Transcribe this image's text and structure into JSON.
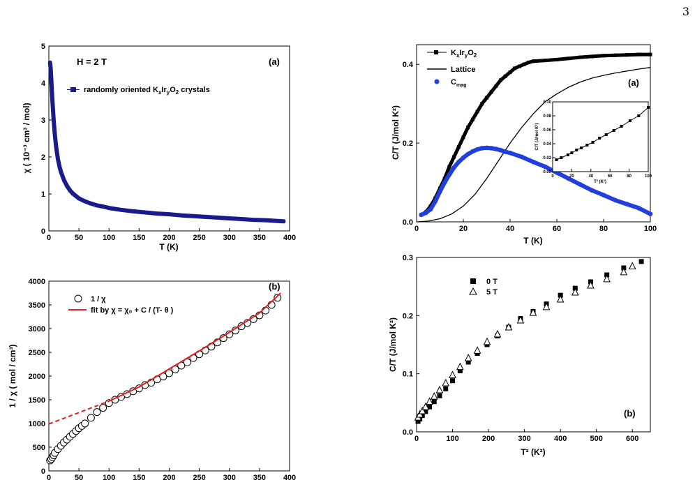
{
  "page_number": "3",
  "chart_data": [
    {
      "id": "chi_vs_T",
      "type": "scatter",
      "panel_label": "(a)",
      "annotation": "H = 2 T",
      "xlabel": "T (K)",
      "ylabel": "χ ( 10⁻³ cm³ / mol)",
      "xlim": [
        0,
        400
      ],
      "ylim": [
        0,
        5
      ],
      "xticks": [
        "0",
        "50",
        "100",
        "150",
        "200",
        "250",
        "300",
        "350",
        "400"
      ],
      "yticks": [
        "0",
        "1",
        "2",
        "3",
        "4",
        "5"
      ],
      "series": [
        {
          "name": "randomly oriented KxIryO2 crystals",
          "color": "#1a1a8c",
          "x": [
            2,
            3,
            4,
            5,
            6,
            8,
            10,
            12,
            15,
            18,
            20,
            25,
            30,
            35,
            40,
            50,
            60,
            70,
            80,
            90,
            100,
            120,
            140,
            160,
            180,
            200,
            220,
            240,
            260,
            280,
            300,
            320,
            340,
            360,
            380,
            390
          ],
          "y": [
            4.55,
            4.4,
            4.1,
            3.8,
            3.5,
            3.0,
            2.6,
            2.3,
            1.95,
            1.72,
            1.6,
            1.38,
            1.22,
            1.1,
            1.01,
            0.88,
            0.8,
            0.74,
            0.69,
            0.66,
            0.62,
            0.57,
            0.53,
            0.5,
            0.47,
            0.45,
            0.42,
            0.4,
            0.38,
            0.36,
            0.34,
            0.32,
            0.3,
            0.29,
            0.27,
            0.26
          ]
        }
      ]
    },
    {
      "id": "inv_chi_vs_T",
      "type": "scatter",
      "panel_label": "(b)",
      "xlabel": "",
      "ylabel": "1 / χ ( mol / cm³)",
      "xlim": [
        0,
        400
      ],
      "ylim": [
        0,
        4000
      ],
      "xticks": [
        "0",
        "50",
        "100",
        "150",
        "200",
        "250",
        "300",
        "350",
        "400"
      ],
      "yticks": [
        "0",
        "500",
        "1000",
        "1500",
        "2000",
        "2500",
        "3000",
        "3500",
        "4000"
      ],
      "legend": {
        "data_label": "1 / χ",
        "fit_label": "fit by χ = χ₀  +  C / (T- θ )"
      },
      "series": [
        {
          "name": "1 / χ",
          "x": [
            2,
            4,
            6,
            8,
            10,
            15,
            20,
            25,
            30,
            35,
            40,
            45,
            50,
            55,
            60,
            70,
            80,
            90,
            100,
            110,
            120,
            130,
            140,
            150,
            160,
            170,
            180,
            190,
            200,
            210,
            220,
            230,
            240,
            250,
            260,
            270,
            280,
            290,
            300,
            310,
            320,
            330,
            340,
            350,
            360,
            370,
            380
          ],
          "y": [
            220,
            250,
            290,
            330,
            380,
            460,
            530,
            600,
            660,
            720,
            780,
            840,
            900,
            950,
            1000,
            1120,
            1240,
            1330,
            1430,
            1500,
            1560,
            1620,
            1680,
            1740,
            1810,
            1860,
            1930,
            1990,
            2060,
            2140,
            2220,
            2290,
            2380,
            2460,
            2540,
            2620,
            2710,
            2800,
            2880,
            2960,
            3050,
            3120,
            3200,
            3280,
            3380,
            3500,
            3650
          ]
        }
      ],
      "fit": {
        "x": [
          0,
          100,
          150,
          200,
          250,
          300,
          350,
          385
        ],
        "y": [
          990,
          1470,
          1770,
          2150,
          2530,
          2920,
          3330,
          3750
        ],
        "color": "#e02020",
        "dashed_below_x": 100
      }
    },
    {
      "id": "CT_vs_T",
      "type": "line",
      "panel_label": "(a)",
      "xlabel": "T (K)",
      "ylabel": "C/T (J/mol K²)",
      "xlim": [
        0,
        100
      ],
      "ylim": [
        0,
        0.45
      ],
      "xticks": [
        "0",
        "20",
        "40",
        "60",
        "80",
        "100"
      ],
      "yticks": [
        "0.0",
        "0.2",
        "0.4"
      ],
      "legend": [
        "KxIryO2",
        "Lattice",
        "Cmag"
      ],
      "series": [
        {
          "name": "KxIryO2",
          "color": "#000000",
          "x": [
            2,
            4,
            6,
            8,
            10,
            12,
            14,
            16,
            18,
            20,
            22,
            24,
            26,
            28,
            30,
            32,
            34,
            36,
            38,
            40,
            42,
            44,
            46,
            48,
            50,
            55,
            60,
            65,
            70,
            75,
            80,
            85,
            90,
            95,
            100
          ],
          "y": [
            0.018,
            0.025,
            0.04,
            0.06,
            0.085,
            0.11,
            0.14,
            0.165,
            0.19,
            0.215,
            0.24,
            0.26,
            0.28,
            0.3,
            0.315,
            0.33,
            0.345,
            0.36,
            0.37,
            0.38,
            0.39,
            0.395,
            0.4,
            0.405,
            0.408,
            0.41,
            0.412,
            0.415,
            0.418,
            0.42,
            0.422,
            0.423,
            0.424,
            0.425,
            0.425
          ]
        },
        {
          "name": "Lattice",
          "color": "#000000",
          "x": [
            0,
            5,
            10,
            15,
            20,
            25,
            30,
            35,
            40,
            45,
            50,
            55,
            60,
            65,
            70,
            75,
            80,
            85,
            90,
            95,
            100
          ],
          "y": [
            0,
            0.002,
            0.008,
            0.02,
            0.04,
            0.07,
            0.11,
            0.155,
            0.2,
            0.24,
            0.275,
            0.305,
            0.325,
            0.342,
            0.355,
            0.365,
            0.372,
            0.378,
            0.383,
            0.388,
            0.392
          ]
        },
        {
          "name": "Cmag",
          "color": "#1f3fe0",
          "x": [
            2,
            4,
            6,
            8,
            10,
            12,
            14,
            16,
            18,
            20,
            22,
            24,
            26,
            28,
            30,
            32,
            34,
            36,
            38,
            40,
            45,
            50,
            55,
            60,
            65,
            70,
            75,
            80,
            85,
            90,
            95,
            100
          ],
          "y": [
            0.018,
            0.023,
            0.032,
            0.052,
            0.077,
            0.1,
            0.12,
            0.138,
            0.152,
            0.163,
            0.172,
            0.179,
            0.184,
            0.187,
            0.188,
            0.187,
            0.185,
            0.182,
            0.178,
            0.175,
            0.165,
            0.152,
            0.14,
            0.125,
            0.11,
            0.095,
            0.08,
            0.068,
            0.055,
            0.045,
            0.035,
            0.02
          ]
        }
      ],
      "inset": {
        "xlabel": "T² (K²)",
        "ylabel": "C/T (J/mol K²)",
        "xlim": [
          0,
          100
        ],
        "ylim": [
          0,
          0.1
        ],
        "xticks": [
          "0",
          "20",
          "40",
          "60",
          "80",
          "100"
        ],
        "yticks": [
          "0.00",
          "0.02",
          "0.04",
          "0.06",
          "0.08",
          "0.10"
        ],
        "x": [
          4,
          9,
          16,
          20,
          25,
          30,
          36,
          42,
          49,
          56,
          64,
          72,
          81,
          90,
          100
        ],
        "y": [
          0.017,
          0.02,
          0.024,
          0.027,
          0.031,
          0.034,
          0.038,
          0.042,
          0.048,
          0.053,
          0.059,
          0.065,
          0.073,
          0.08,
          0.092
        ]
      }
    },
    {
      "id": "CT_vs_T2",
      "type": "scatter",
      "panel_label": "(b)",
      "xlabel": "T² (K²)",
      "ylabel": "C/T (J/mol K²)",
      "xlim": [
        0,
        650
      ],
      "ylim": [
        0,
        0.3
      ],
      "xticks": [
        "0",
        "100",
        "200",
        "300",
        "400",
        "500",
        "600"
      ],
      "yticks": [
        "0.0",
        "0.1",
        "0.2",
        "0.3"
      ],
      "series": [
        {
          "name": "0 T",
          "marker": "square",
          "x": [
            4,
            9,
            16,
            25,
            36,
            49,
            64,
            81,
            100,
            121,
            144,
            169,
            196,
            225,
            256,
            289,
            324,
            361,
            400,
            441,
            484,
            529,
            576,
            625
          ],
          "y": [
            0.018,
            0.022,
            0.028,
            0.035,
            0.043,
            0.052,
            0.062,
            0.074,
            0.088,
            0.105,
            0.12,
            0.135,
            0.15,
            0.165,
            0.18,
            0.195,
            0.207,
            0.22,
            0.235,
            0.247,
            0.258,
            0.27,
            0.282,
            0.293
          ]
        },
        {
          "name": "5 T",
          "marker": "triangle",
          "x": [
            4,
            9,
            16,
            25,
            36,
            49,
            64,
            81,
            100,
            121,
            144,
            169,
            196,
            225,
            256,
            289,
            324,
            361,
            400,
            441,
            484,
            529,
            576,
            600
          ],
          "y": [
            0.025,
            0.03,
            0.036,
            0.043,
            0.052,
            0.061,
            0.072,
            0.084,
            0.098,
            0.112,
            0.127,
            0.14,
            0.155,
            0.168,
            0.18,
            0.192,
            0.205,
            0.215,
            0.228,
            0.24,
            0.252,
            0.263,
            0.275,
            0.285
          ]
        }
      ]
    }
  ]
}
